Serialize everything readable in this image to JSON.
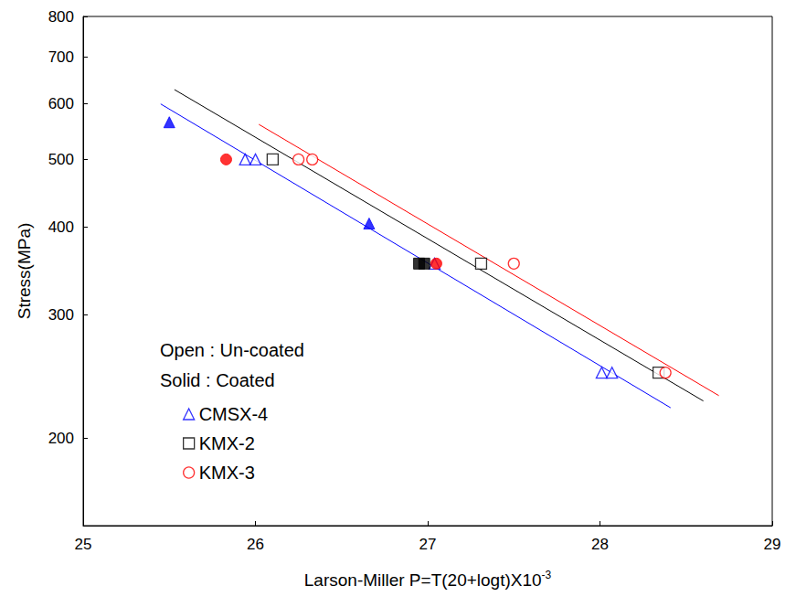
{
  "chart_data": {
    "type": "scatter",
    "xlabel": "Larson-Miller P=T(20+logt)X10-3",
    "ylabel": "Stress(MPa)",
    "xlim": [
      25,
      29
    ],
    "xticks": [
      25,
      26,
      27,
      28,
      29
    ],
    "ylim": [
      150,
      800
    ],
    "yticks": [
      200,
      300,
      400,
      500,
      600,
      700,
      800
    ],
    "log": "y",
    "grid": false,
    "legend": "lower left",
    "annotations": [
      "Open : Un-coated",
      "Solid : Coated"
    ],
    "series": [
      {
        "name": "CMSX-4",
        "color": "#0000ff",
        "marker": "triangle",
        "uncoated": {
          "x": [
            25.94,
            26.0,
            27.04,
            28.01,
            28.07
          ],
          "values": [
            500,
            500,
            355,
            248,
            248
          ]
        },
        "coated": {
          "x": [
            25.5,
            26.66
          ],
          "values": [
            565,
            405
          ]
        },
        "fit": {
          "x": [
            25.45,
            28.41
          ],
          "values": [
            600,
            221
          ]
        }
      },
      {
        "name": "KMX-2",
        "color": "#000000",
        "marker": "square",
        "uncoated": {
          "x": [
            26.1,
            27.31,
            28.34
          ],
          "values": [
            500,
            355,
            248
          ]
        },
        "coated": {
          "x": [
            26.95,
            26.98
          ],
          "values": [
            355,
            355
          ]
        },
        "fit": {
          "x": [
            25.53,
            28.6
          ],
          "values": [
            629,
            226
          ]
        }
      },
      {
        "name": "KMX-3",
        "color": "#ff0000",
        "marker": "circle",
        "uncoated": {
          "x": [
            26.25,
            26.33,
            27.5,
            28.38
          ],
          "values": [
            500,
            500,
            355,
            248
          ]
        },
        "coated": {
          "x": [
            25.83,
            27.05
          ],
          "values": [
            500,
            355
          ]
        },
        "fit": {
          "x": [
            26.02,
            28.69
          ],
          "values": [
            561,
            230
          ]
        }
      }
    ]
  }
}
